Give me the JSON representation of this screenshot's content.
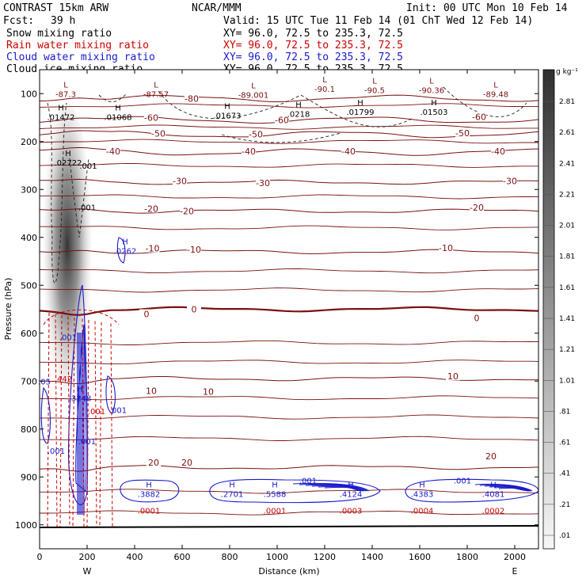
{
  "header": {
    "model": "CONTRAST 15km ARW",
    "org": "NCAR/MMM",
    "init": "Init: 00 UTC Mon 10 Feb 14",
    "fcst_label": "Fcst:",
    "fcst_value": "39 h",
    "valid": "Valid: 15 UTC Tue 11 Feb 14 (01 ChT Wed 12 Feb 14)",
    "fields": [
      {
        "name": "Snow mixing ratio",
        "color": "#000000",
        "xy": "XY=  96.0, 72.5 to 235.3, 72.5"
      },
      {
        "name": "Rain water mixing ratio",
        "color": "#cc0000",
        "xy": "XY=  96.0, 72.5 to 235.3, 72.5"
      },
      {
        "name": "Cloud water mixing ratio",
        "color": "#1a1acc",
        "xy": "XY=  96.0, 72.5 to 235.3, 72.5"
      },
      {
        "name": "Cloud ice mixing ratio",
        "color": "#000000",
        "xy": "XY=  96.0, 72.5 to 235.3, 72.5"
      }
    ]
  },
  "colorbar": {
    "unit": "g kg⁻¹",
    "labels": [
      "2.81",
      "2.61",
      "2.41",
      "2.21",
      "2.01",
      "1.81",
      "1.61",
      "1.41",
      "1.21",
      "1.01",
      ".81",
      ".61",
      ".41",
      ".21",
      ".01"
    ]
  },
  "chart_data": {
    "type": "contour",
    "xlabel": "Distance (km)",
    "ylabel": "Pressure (hPa)",
    "xlim": [
      0,
      2100
    ],
    "ylim": [
      1050,
      50
    ],
    "x_ticks": [
      0,
      200,
      400,
      600,
      800,
      1000,
      1200,
      1400,
      1600,
      1800,
      2000
    ],
    "y_ticks": [
      100,
      200,
      300,
      400,
      500,
      600,
      700,
      800,
      900,
      1000
    ],
    "x_end_labels": {
      "left": "W",
      "right": "E"
    },
    "temperature_contours": [
      {
        "label": "-80",
        "p": 110
      },
      {
        "label": "-60",
        "p": 155
      },
      {
        "label": "-50",
        "p": 185
      },
      {
        "label": "-40",
        "p": 222
      },
      {
        "label": "-30",
        "p": 285
      },
      {
        "label": "-20",
        "p": 345
      },
      {
        "label": "-10",
        "p": 430
      },
      {
        "label": "0",
        "p": 550
      },
      {
        "label": "10",
        "p": 695
      },
      {
        "label": "20",
        "p": 880
      }
    ],
    "temperature_labels": [
      {
        "text": "-80",
        "x": 640,
        "p": 110
      },
      {
        "text": "-60",
        "x": 470,
        "p": 150
      },
      {
        "text": "-60",
        "x": 1020,
        "p": 155
      },
      {
        "text": "-60",
        "x": 1850,
        "p": 148
      },
      {
        "text": "-50",
        "x": 500,
        "p": 183
      },
      {
        "text": "-50",
        "x": 910,
        "p": 185
      },
      {
        "text": "-50",
        "x": 1780,
        "p": 182
      },
      {
        "text": "-40",
        "x": 310,
        "p": 220
      },
      {
        "text": "-40",
        "x": 880,
        "p": 220
      },
      {
        "text": "-40",
        "x": 1300,
        "p": 220
      },
      {
        "text": "-40",
        "x": 1930,
        "p": 220
      },
      {
        "text": "-30",
        "x": 590,
        "p": 282
      },
      {
        "text": "-30",
        "x": 940,
        "p": 286
      },
      {
        "text": "-30",
        "x": 1980,
        "p": 282
      },
      {
        "text": "-20",
        "x": 470,
        "p": 340
      },
      {
        "text": "-20",
        "x": 620,
        "p": 345
      },
      {
        "text": "-20",
        "x": 1840,
        "p": 338
      },
      {
        "text": "-10",
        "x": 475,
        "p": 423
      },
      {
        "text": "-10",
        "x": 650,
        "p": 425
      },
      {
        "text": "-10",
        "x": 1710,
        "p": 422
      },
      {
        "text": "0",
        "x": 450,
        "p": 560
      },
      {
        "text": "0",
        "x": 650,
        "p": 550
      },
      {
        "text": "0",
        "x": 1840,
        "p": 568
      },
      {
        "text": "10",
        "x": 470,
        "p": 720
      },
      {
        "text": "10",
        "x": 710,
        "p": 722
      },
      {
        "text": "10",
        "x": 1740,
        "p": 690
      },
      {
        "text": "20",
        "x": 480,
        "p": 870
      },
      {
        "text": "20",
        "x": 620,
        "p": 870
      },
      {
        "text": "20",
        "x": 1900,
        "p": 857
      }
    ],
    "extrema": [
      {
        "type": "L",
        "value": "-87.3",
        "x": 110,
        "p": 100,
        "color": "#7a1010"
      },
      {
        "type": "L",
        "value": "-87.57",
        "x": 490,
        "p": 100,
        "color": "#7a1010"
      },
      {
        "type": "L",
        "value": "-89.001",
        "x": 900,
        "p": 102,
        "color": "#7a1010"
      },
      {
        "type": "L",
        "value": "-90.1",
        "x": 1200,
        "p": 90,
        "color": "#7a1010"
      },
      {
        "type": "L",
        "value": "-90.5",
        "x": 1410,
        "p": 92,
        "color": "#7a1010"
      },
      {
        "type": "L",
        "value": "-90.36",
        "x": 1650,
        "p": 92,
        "color": "#7a1010"
      },
      {
        "type": "L",
        "value": "-89.48",
        "x": 1920,
        "p": 100,
        "color": "#7a1010"
      },
      {
        "type": "H",
        "value": ".01472",
        "x": 90,
        "p": 148,
        "color": "#000000"
      },
      {
        "type": "H",
        "value": ".01068",
        "x": 330,
        "p": 148,
        "color": "#000000"
      },
      {
        "type": "H",
        "value": ".01673",
        "x": 790,
        "p": 145,
        "color": "#000000"
      },
      {
        "type": "H",
        "value": ".0218",
        "x": 1090,
        "p": 142,
        "color": "#000000"
      },
      {
        "type": "H",
        "value": ".01799",
        "x": 1350,
        "p": 138,
        "color": "#000000"
      },
      {
        "type": "H",
        "value": ".01503",
        "x": 1660,
        "p": 138,
        "color": "#000000"
      },
      {
        "type": "H",
        "value": ".02722",
        "x": 120,
        "p": 243,
        "color": "#000000"
      },
      {
        "type": "H",
        "value": ".0262",
        "x": 360,
        "p": 428,
        "color": "#1a1acc"
      },
      {
        "type": "H",
        "value": ".3248",
        "x": 170,
        "p": 735,
        "color": "#1a1acc"
      },
      {
        "type": "H",
        "value": ".3882",
        "x": 460,
        "p": 935,
        "color": "#1a1acc"
      },
      {
        "type": "H",
        "value": ".2701",
        "x": 810,
        "p": 935,
        "color": "#1a1acc"
      },
      {
        "type": "H",
        "value": ".5588",
        "x": 990,
        "p": 935,
        "color": "#1a1acc"
      },
      {
        "type": "H",
        "value": ".4124",
        "x": 1310,
        "p": 935,
        "color": "#1a1acc"
      },
      {
        "type": "H",
        "value": ".4383",
        "x": 1610,
        "p": 935,
        "color": "#1a1acc"
      },
      {
        "type": "H",
        "value": ".4081",
        "x": 1910,
        "p": 935,
        "color": "#1a1acc"
      }
    ],
    "cloud_water_labels": [
      {
        "text": ".001",
        "x": 120,
        "p": 608
      },
      {
        "text": ".001",
        "x": 330,
        "p": 760
      },
      {
        "text": ".001",
        "x": 200,
        "p": 825
      },
      {
        "text": ".001",
        "x": 70,
        "p": 845
      },
      {
        "text": ".001",
        "x": 1130,
        "p": 907
      },
      {
        "text": ".001",
        "x": 1780,
        "p": 907
      },
      {
        "text": ".05",
        "x": 20,
        "p": 700
      }
    ],
    "rain_labels": [
      {
        "text": ".442",
        "x": 100,
        "p": 695
      },
      {
        "text": ".001",
        "x": 240,
        "p": 762
      },
      {
        "text": ".0001",
        "x": 460,
        "p": 970
      },
      {
        "text": ".0001",
        "x": 990,
        "p": 970
      },
      {
        "text": ".0003",
        "x": 1310,
        "p": 970
      },
      {
        "text": ".0004",
        "x": 1610,
        "p": 970
      },
      {
        "text": ".0002",
        "x": 1910,
        "p": 970
      }
    ],
    "snow_labels": [
      {
        "text": ".001",
        "x": 205,
        "p": 250
      },
      {
        "text": ".001",
        "x": 200,
        "p": 337
      }
    ]
  }
}
